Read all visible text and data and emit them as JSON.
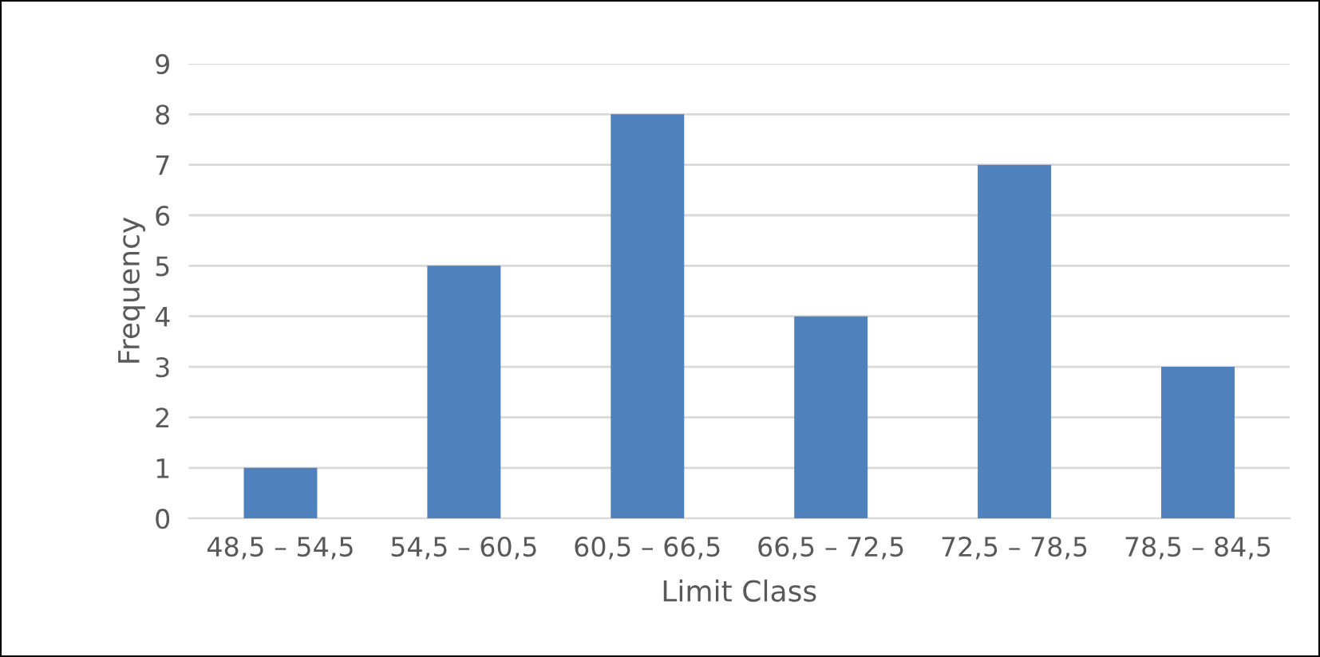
{
  "chart_data": {
    "type": "bar",
    "xlabel": "Limit Class",
    "ylabel": "Frequency",
    "categories": [
      "48,5 – 54,5",
      "54,5 – 60,5",
      "60,5 – 66,5",
      "66,5 – 72,5",
      "72,5 – 78,5",
      "78,5 – 84,5"
    ],
    "values": [
      1,
      5,
      8,
      4,
      7,
      3
    ],
    "color": "#4f81bd",
    "ylim": [
      0,
      9
    ],
    "yticks": [
      0,
      1,
      2,
      3,
      4,
      5,
      6,
      7,
      8,
      9
    ],
    "grid": "y",
    "legend": false
  }
}
